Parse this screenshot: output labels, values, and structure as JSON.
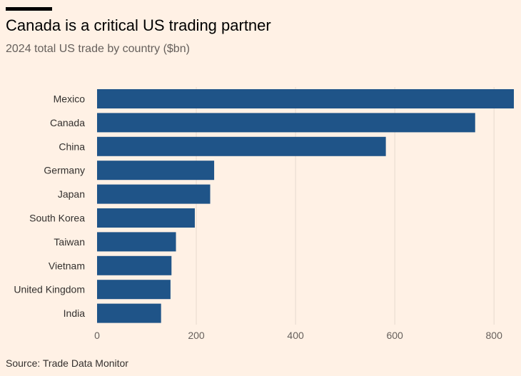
{
  "title": "Canada is a critical US trading partner",
  "subtitle": "2024 total US trade by country ($bn)",
  "source": "Source: Trade Data Monitor",
  "colors": {
    "background": "#fff1e5",
    "bar": "#1f5488",
    "grid": "#e6d9ce"
  },
  "chart_data": {
    "type": "bar",
    "orientation": "horizontal",
    "categories": [
      "Mexico",
      "Canada",
      "China",
      "Germany",
      "Japan",
      "South Korea",
      "Taiwan",
      "Vietnam",
      "United Kingdom",
      "India"
    ],
    "values": [
      840,
      762,
      582,
      236,
      228,
      197,
      159,
      150,
      148,
      129
    ],
    "xlim": [
      0,
      840
    ],
    "xticks": [
      0,
      200,
      400,
      600,
      800
    ],
    "grid": true
  }
}
